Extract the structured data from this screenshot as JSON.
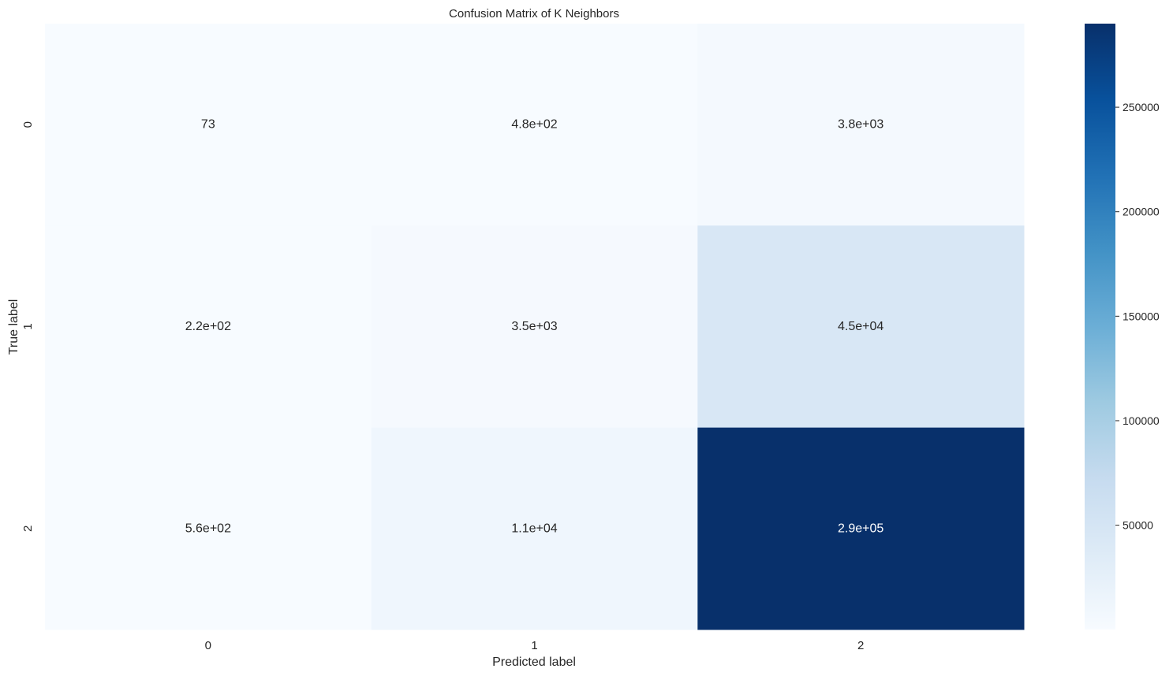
{
  "chart_data": {
    "type": "heatmap",
    "title": "Confusion Matrix of K Neighbors",
    "xlabel": "Predicted label",
    "ylabel": "True label",
    "x_categories": [
      "0",
      "1",
      "2"
    ],
    "y_categories": [
      "0",
      "1",
      "2"
    ],
    "values": [
      [
        73,
        480,
        3800
      ],
      [
        220,
        3500,
        45000
      ],
      [
        560,
        11000,
        290000
      ]
    ],
    "annotations": [
      [
        "73",
        "4.8e+02",
        "3.8e+03"
      ],
      [
        "2.2e+02",
        "3.5e+03",
        "4.5e+04"
      ],
      [
        "5.6e+02",
        "1.1e+04",
        "2.9e+05"
      ]
    ],
    "colormap": "Blues",
    "color_range": [
      73,
      290000
    ],
    "colorbar_ticks": [
      {
        "value": 50000,
        "label": "50000"
      },
      {
        "value": 100000,
        "label": "100000"
      },
      {
        "value": 150000,
        "label": "150000"
      },
      {
        "value": 200000,
        "label": "200000"
      },
      {
        "value": 250000,
        "label": "250000"
      }
    ],
    "grid": false,
    "legend": "colorbar-right"
  }
}
